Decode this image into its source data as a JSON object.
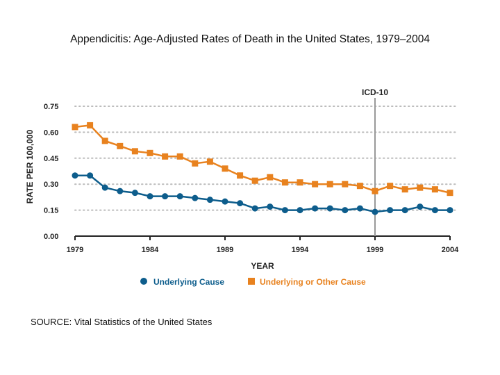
{
  "title": "Appendicitis:  Age-Adjusted Rates of Death in the United States, 1979–2004",
  "source": "SOURCE:  Vital Statistics of the United States",
  "colors": {
    "series1": "#0d5d8c",
    "series2": "#e8821f",
    "grid": "#bbbbbb",
    "marker_line": "#999999"
  },
  "chart_data": {
    "type": "line",
    "title": "Appendicitis:  Age-Adjusted Rates of Death in the United States, 1979–2004",
    "xlabel": "YEAR",
    "ylabel": "RATE PER 100,000",
    "x": [
      1979,
      1980,
      1981,
      1982,
      1983,
      1984,
      1985,
      1986,
      1987,
      1988,
      1989,
      1990,
      1991,
      1992,
      1993,
      1994,
      1995,
      1996,
      1997,
      1998,
      1999,
      2000,
      2001,
      2002,
      2003,
      2004
    ],
    "x_ticks": [
      "1979",
      "1984",
      "1989",
      "1994",
      "1999",
      "2004"
    ],
    "y_ticks": [
      "0.00",
      "0.15",
      "0.30",
      "0.45",
      "0.60",
      "0.75"
    ],
    "ylim": [
      0,
      0.75
    ],
    "xlim": [
      1979,
      2004
    ],
    "grid": true,
    "vertical_marker": {
      "x": 1999,
      "label": "ICD-10"
    },
    "legend_position": "bottom",
    "series": [
      {
        "name": "Underlying Cause",
        "marker": "circle",
        "values": [
          0.35,
          0.35,
          0.28,
          0.26,
          0.25,
          0.23,
          0.23,
          0.23,
          0.22,
          0.21,
          0.2,
          0.19,
          0.16,
          0.17,
          0.15,
          0.15,
          0.16,
          0.16,
          0.15,
          0.16,
          0.14,
          0.15,
          0.15,
          0.17,
          0.15,
          0.15
        ]
      },
      {
        "name": "Underlying or Other Cause",
        "marker": "square",
        "values": [
          0.63,
          0.64,
          0.55,
          0.52,
          0.49,
          0.48,
          0.46,
          0.46,
          0.42,
          0.43,
          0.39,
          0.35,
          0.32,
          0.34,
          0.31,
          0.31,
          0.3,
          0.3,
          0.3,
          0.29,
          0.26,
          0.29,
          0.27,
          0.28,
          0.27,
          0.25
        ]
      }
    ]
  }
}
